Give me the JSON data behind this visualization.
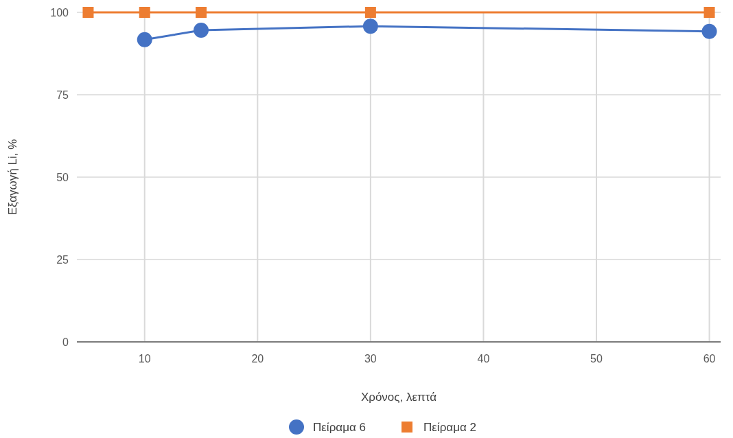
{
  "chart_data": {
    "type": "line",
    "xlabel": "Χρόνος, λεπτά",
    "ylabel": "Εξαγωγή Li, %",
    "xlim": [
      4,
      61
    ],
    "xticks": [
      10,
      20,
      30,
      40,
      50,
      60
    ],
    "ylim": [
      0,
      100
    ],
    "yticks": [
      0,
      25,
      50,
      75,
      100
    ],
    "grid": true,
    "legend": "bottom",
    "line_style": "solid",
    "series": [
      {
        "name": "Πείραμα 6",
        "color": "#4472c4",
        "marker": "circle",
        "x": [
          10,
          15,
          30,
          60
        ],
        "values": [
          91.7,
          94.6,
          95.8,
          94.2
        ]
      },
      {
        "name": "Πείραμα 2",
        "color": "#ed7d31",
        "marker": "square",
        "x": [
          5,
          10,
          15,
          30,
          60
        ],
        "values": [
          100,
          100,
          100,
          100,
          100
        ]
      }
    ]
  }
}
